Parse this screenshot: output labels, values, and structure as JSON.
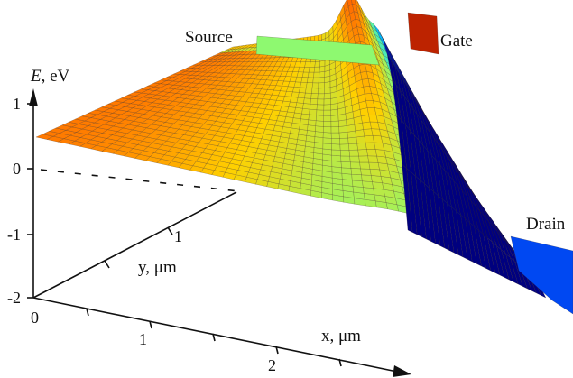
{
  "chart_data": {
    "type": "surface3d",
    "zlabel": {
      "var": "E",
      "unit": ", eV"
    },
    "xlabel": "x, μm",
    "ylabel": "y, μm",
    "z_ticks": [
      "1",
      "0",
      "-1",
      "-2"
    ],
    "x_ticks": [
      "0",
      "1",
      "2"
    ],
    "y_ticks": [
      "1"
    ],
    "zlim": [
      -2,
      1
    ],
    "regions": [
      {
        "label": "Source",
        "E_eV": 0.5
      },
      {
        "label": "Gate",
        "E_eV": 1.4
      },
      {
        "label": "Drain",
        "E_eV": -2.0
      }
    ],
    "profile_along_x": {
      "x_um": [
        0.0,
        0.4,
        0.8,
        1.2,
        1.6,
        2.0,
        2.3,
        2.6,
        2.9,
        3.1,
        3.3
      ],
      "E_eV": [
        0.5,
        0.5,
        0.5,
        0.5,
        0.5,
        0.55,
        0.7,
        1.0,
        1.4,
        -1.0,
        -2.0
      ]
    },
    "colormap": [
      "#00007f",
      "#0050ff",
      "#00d0ff",
      "#7fff7f",
      "#ffd000",
      "#ff5000",
      "#a01000"
    ]
  }
}
